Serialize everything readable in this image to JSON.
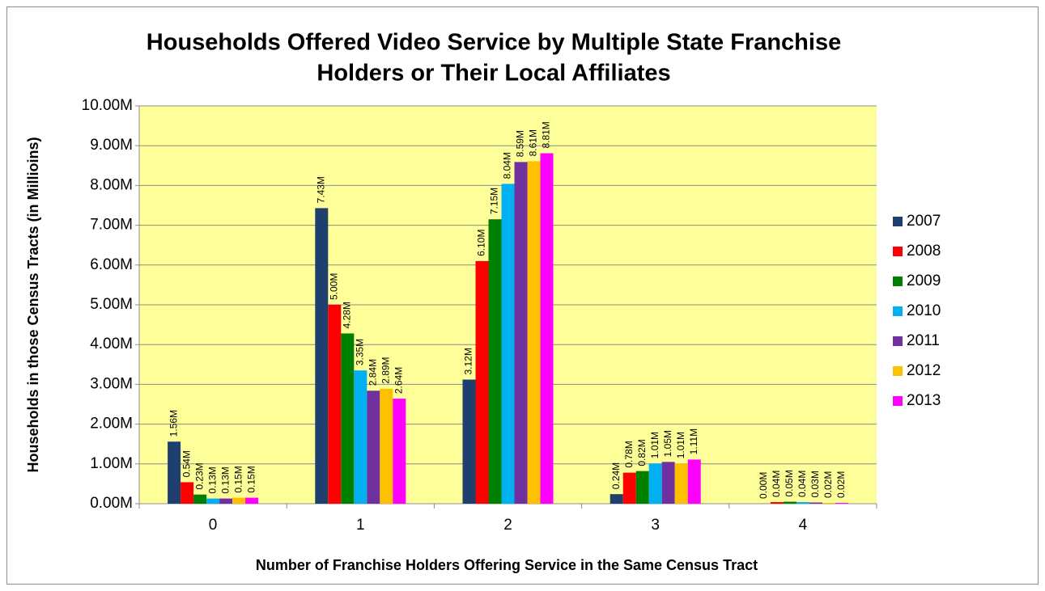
{
  "chart_data": {
    "type": "bar",
    "title": [
      "Households Offered Video Service by Multiple State Franchise",
      "Holders or Their Local Affiliates"
    ],
    "x_label": "Number of Franchise Holders Offering Service in the Same Census Tract",
    "y_label": "Households in those Census Tracts (in Millioins)",
    "categories": [
      "0",
      "1",
      "2",
      "3",
      "4"
    ],
    "series": [
      {
        "name": "2007",
        "color": "#1f3f6e",
        "values": [
          1.56,
          7.43,
          3.12,
          0.24,
          0.0
        ],
        "value_labels": [
          "1.56M",
          "7.43M",
          "3.12M",
          "0.24M",
          "0.00M"
        ]
      },
      {
        "name": "2008",
        "color": "#ff0000",
        "values": [
          0.54,
          5.0,
          6.1,
          0.78,
          0.04
        ],
        "value_labels": [
          "0.54M",
          "5.00M",
          "6.10M",
          "0.78M",
          "0.04M"
        ]
      },
      {
        "name": "2009",
        "color": "#008000",
        "values": [
          0.23,
          4.28,
          7.15,
          0.82,
          0.05
        ],
        "value_labels": [
          "0.23M",
          "4.28M",
          "7.15M",
          "0.82M",
          "0.05M"
        ]
      },
      {
        "name": "2010",
        "color": "#00b0f0",
        "values": [
          0.13,
          3.35,
          8.04,
          1.01,
          0.04
        ],
        "value_labels": [
          "0.13M",
          "3.35M",
          "8.04M",
          "1.01M",
          "0.04M"
        ]
      },
      {
        "name": "2011",
        "color": "#7030a0",
        "values": [
          0.13,
          2.84,
          8.59,
          1.05,
          0.03
        ],
        "value_labels": [
          "0.13M",
          "2.84M",
          "8.59M",
          "1.05M",
          "0.03M"
        ]
      },
      {
        "name": "2012",
        "color": "#ffc000",
        "values": [
          0.15,
          2.89,
          8.61,
          1.01,
          0.02
        ],
        "value_labels": [
          "0.15M",
          "2.89M",
          "8.61M",
          "1.01M",
          "0.02M"
        ]
      },
      {
        "name": "2013",
        "color": "#ff00ff",
        "values": [
          0.15,
          2.64,
          8.81,
          1.11,
          0.02
        ],
        "value_labels": [
          "0.15M",
          "2.64M",
          "8.81M",
          "1.11M",
          "0.02M"
        ]
      }
    ],
    "ylim": [
      0,
      10
    ],
    "yticks": [
      {
        "value": 0,
        "label": "0.00M"
      },
      {
        "value": 1,
        "label": "1.00M"
      },
      {
        "value": 2,
        "label": "2.00M"
      },
      {
        "value": 3,
        "label": "3.00M"
      },
      {
        "value": 4,
        "label": "4.00M"
      },
      {
        "value": 5,
        "label": "5.00M"
      },
      {
        "value": 6,
        "label": "6.00M"
      },
      {
        "value": 7,
        "label": "7.00M"
      },
      {
        "value": 8,
        "label": "8.00M"
      },
      {
        "value": 9,
        "label": "9.00M"
      },
      {
        "value": 10,
        "label": "10.00M"
      }
    ],
    "grid": true,
    "plot_background": "#ffff99",
    "legend": "right"
  }
}
